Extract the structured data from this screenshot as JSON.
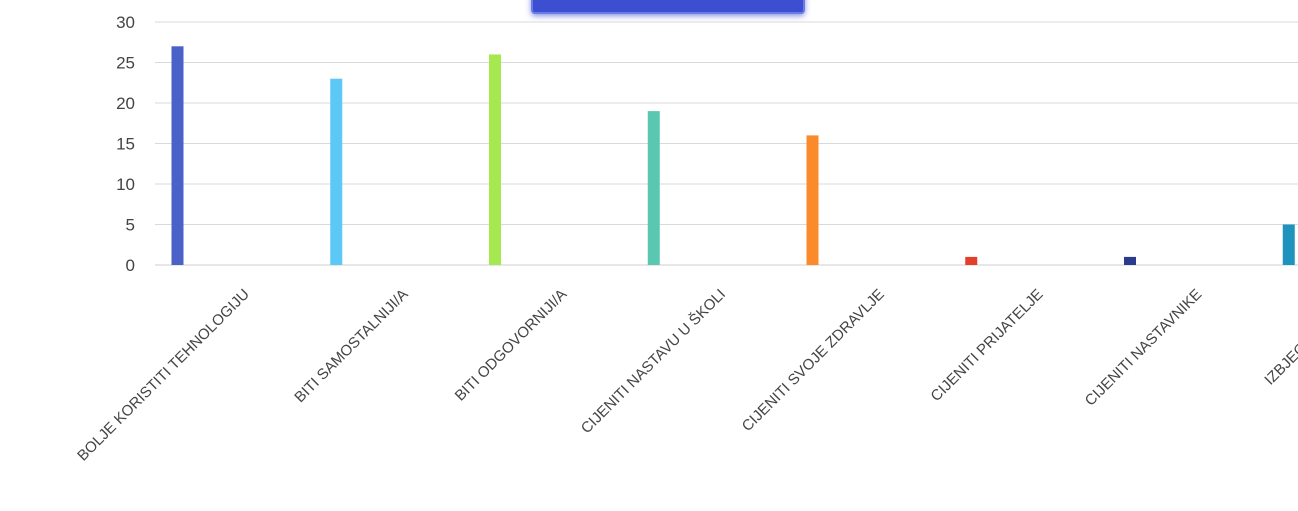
{
  "chart_data": {
    "type": "bar",
    "categories": [
      "BOLJE KORISTITI TEHNOLOGIJU",
      "BITI SAMOSTALNIJI/A",
      "BITI ODGOVORNIJI/A",
      "CIJENITI NASTAVU U ŠKOLI",
      "CIJENITI SVOJE ZDRAVLJE",
      "CIJENITI PRIJATELJE",
      "CIJENITI NASTAVNIKE",
      "IZBJEGAVATI RAD"
    ],
    "values": [
      27,
      23,
      26,
      19,
      16,
      1,
      1,
      5
    ],
    "colors": [
      "#4a61c8",
      "#5bc8f5",
      "#a6e84f",
      "#5ac8b0",
      "#fb8a2a",
      "#e2402a",
      "#2a3a8c",
      "#1d93bd"
    ],
    "ylim": [
      0,
      30
    ],
    "yticks": [
      0,
      5,
      10,
      15,
      20,
      25,
      30
    ],
    "grid": true,
    "title": "",
    "xlabel": "",
    "ylabel": ""
  }
}
